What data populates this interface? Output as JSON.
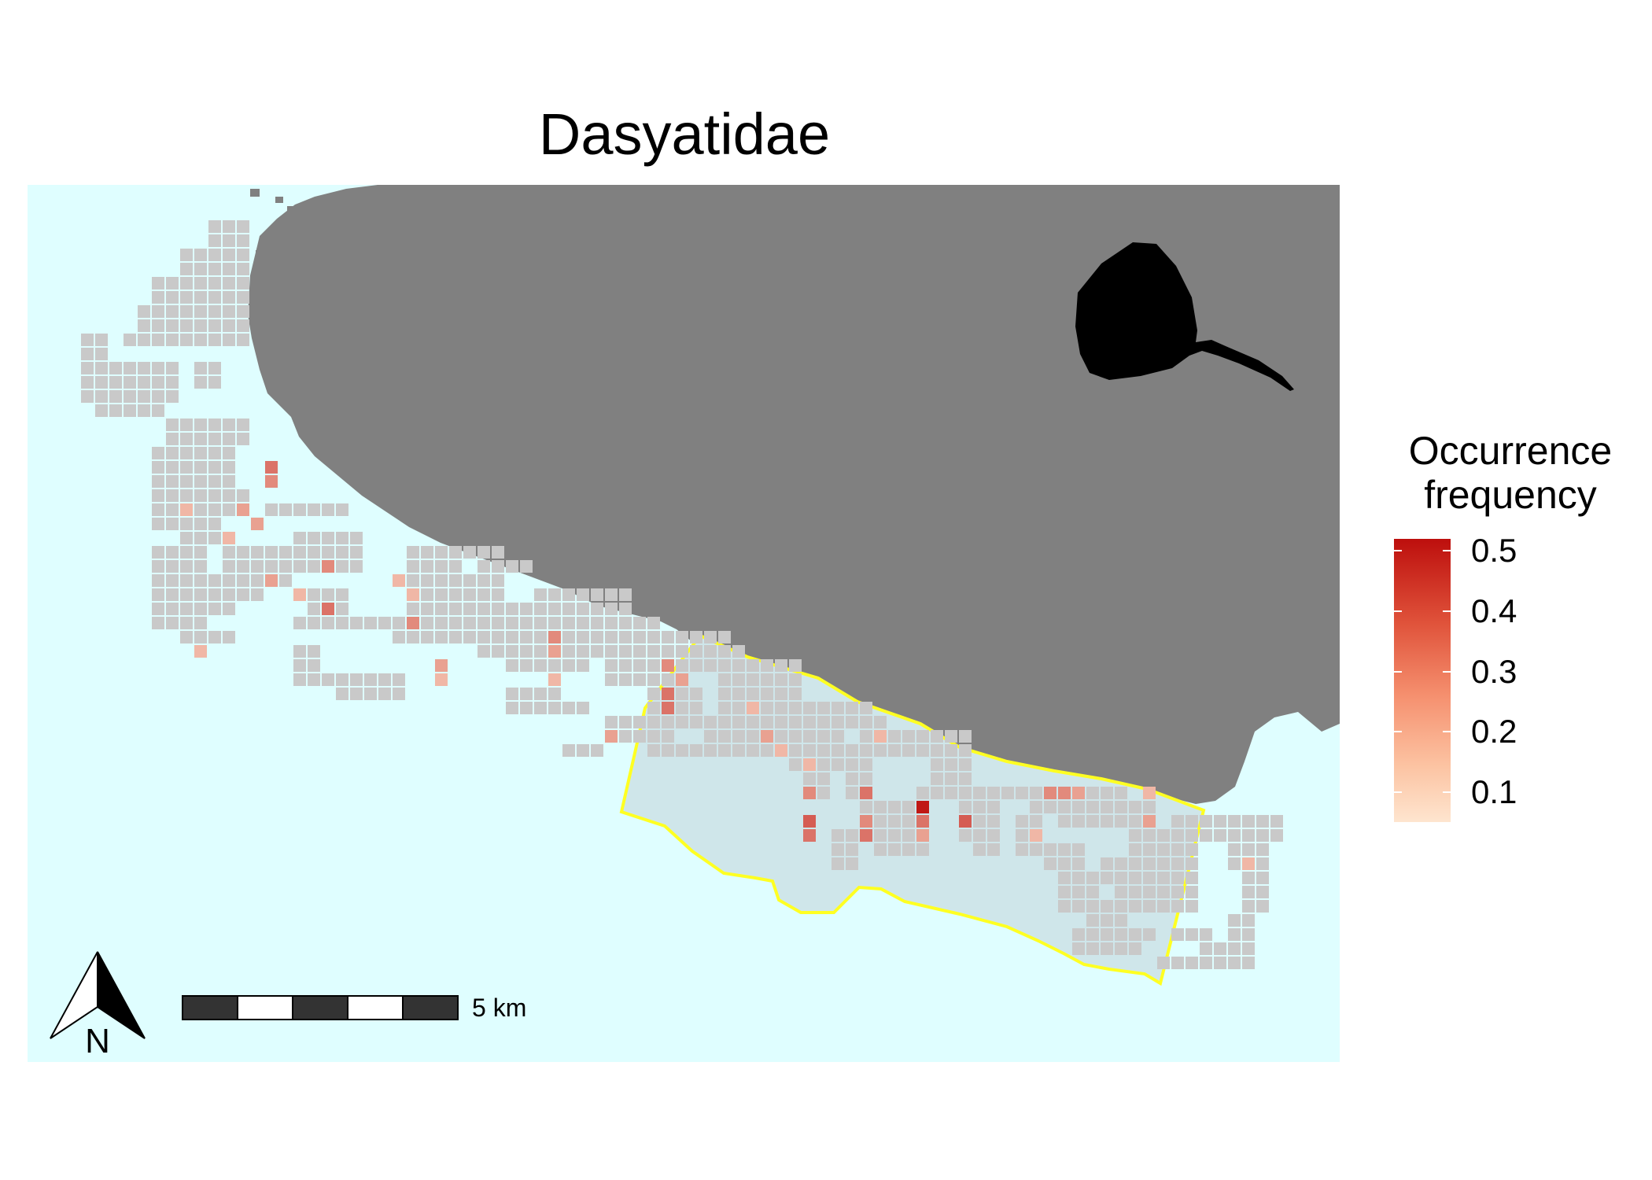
{
  "map": {
    "title": "Dasyatidae",
    "scale_bar_label": "5 km",
    "north_label": "N",
    "colors": {
      "sea": "#dffeff",
      "land": "#808080",
      "no_occurrence_cell": "#c9c9c9",
      "protected_area_outline": "#ffff22",
      "protected_area_fill": "#cfe6ea",
      "silhouette": "#000000"
    },
    "silhouette_icon": "stingray-silhouette-icon",
    "north_arrow_icon": "north-arrow-icon"
  },
  "legend": {
    "title_line1": "Occurrence",
    "title_line2": "frequency",
    "ticks": [
      "0.5",
      "0.4",
      "0.3",
      "0.2",
      "0.1"
    ],
    "tick_values": [
      0.5,
      0.4,
      0.3,
      0.2,
      0.1
    ],
    "range": [
      0.05,
      0.52
    ],
    "color_low": "#fee5cf",
    "color_high": "#bd0f0d"
  }
}
